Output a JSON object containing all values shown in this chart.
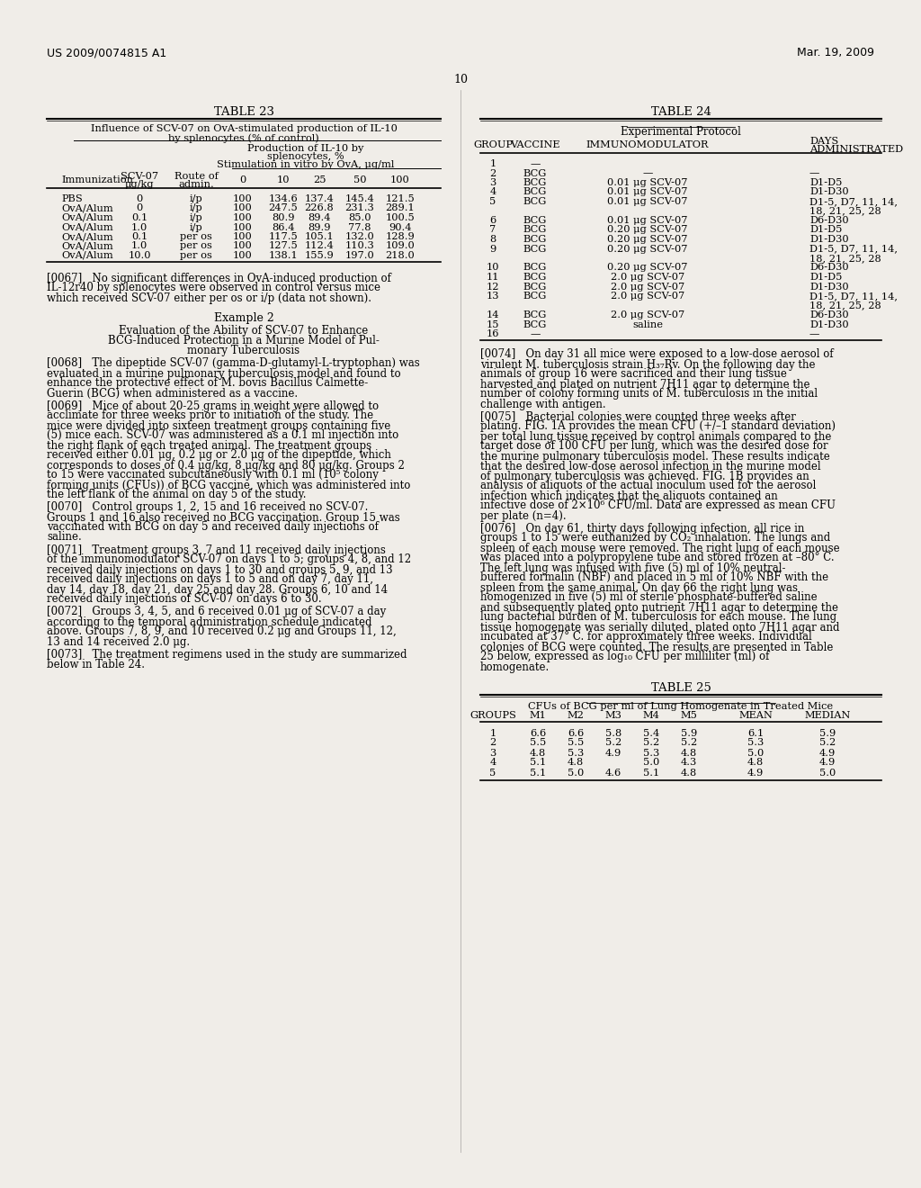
{
  "bg_color": "#f0ede8",
  "header_left": "US 2009/0074815 A1",
  "header_right": "Mar. 19, 2009",
  "page_number": "10",
  "table23_title": "TABLE 23",
  "table23_sub1": "Influence of SCV-07 on OvA-stimulated production of IL-10",
  "table23_sub2": "by splenocytes (% of control)",
  "table23_col_header_right1": "Production of IL-10 by",
  "table23_col_header_right2": "splenocytes, %",
  "table23_col_header_right3": "Stimulation in vitro by OvA, μg/ml",
  "table23_headers": [
    "Immunization",
    "SCV-07\nμg/kg",
    "Route of\nadmin.",
    "0",
    "10",
    "25",
    "50",
    "100"
  ],
  "table23_rows": [
    [
      "PBS",
      "0",
      "i/p",
      "100",
      "134.6",
      "137.4",
      "145.4",
      "121.5"
    ],
    [
      "OvA/Alum",
      "0",
      "i/p",
      "100",
      "247.5",
      "226.8",
      "231.3",
      "289.1"
    ],
    [
      "OvA/Alum",
      "0.1",
      "i/p",
      "100",
      "80.9",
      "89.4",
      "85.0",
      "100.5"
    ],
    [
      "OvA/Alum",
      "1.0",
      "i/p",
      "100",
      "86.4",
      "89.9",
      "77.8",
      "90.4"
    ],
    [
      "OvA/Alum",
      "0.1",
      "per os",
      "100",
      "117.5",
      "105.1",
      "132.0",
      "128.9"
    ],
    [
      "OvA/Alum",
      "1.0",
      "per os",
      "100",
      "127.5",
      "112.4",
      "110.3",
      "109.0"
    ],
    [
      "OvA/Alum",
      "10.0",
      "per os",
      "100",
      "138.1",
      "155.9",
      "197.0",
      "218.0"
    ]
  ],
  "table24_title": "TABLE 24",
  "table24_sub": "Experimental Protocol",
  "table24_headers": [
    "GROUP",
    "VACCINE",
    "IMMUNOMODULATOR",
    "DAYS\nADMINISTRATED"
  ],
  "table24_rows": [
    [
      "1",
      "—",
      "",
      ""
    ],
    [
      "2",
      "BCG",
      "—",
      "—"
    ],
    [
      "3",
      "BCG",
      "0.01 μg SCV-07",
      "D1-D5"
    ],
    [
      "4",
      "BCG",
      "0.01 μg SCV-07",
      "D1-D30"
    ],
    [
      "5",
      "BCG",
      "0.01 μg SCV-07",
      "D1-5, D7, 11, 14,\n18, 21, 25, 28"
    ],
    [
      "6",
      "BCG",
      "0.01 μg SCV-07",
      "D6-D30"
    ],
    [
      "7",
      "BCG",
      "0.20 μg SCV-07",
      "D1-D5"
    ],
    [
      "8",
      "BCG",
      "0.20 μg SCV-07",
      "D1-D30"
    ],
    [
      "9",
      "BCG",
      "0.20 μg SCV-07",
      "D1-5, D7, 11, 14,\n18, 21, 25, 28"
    ],
    [
      "10",
      "BCG",
      "0.20 μg SCV-07",
      "D6-D30"
    ],
    [
      "11",
      "BCG",
      "2.0 μg SCV-07",
      "D1-D5"
    ],
    [
      "12",
      "BCG",
      "2.0 μg SCV-07",
      "D1-D30"
    ],
    [
      "13",
      "BCG",
      "2.0 μg SCV-07",
      "D1-5, D7, 11, 14,\n18, 21, 25, 28"
    ],
    [
      "14",
      "BCG",
      "2.0 μg SCV-07",
      "D6-D30"
    ],
    [
      "15",
      "BCG",
      "saline",
      "D1-D30"
    ],
    [
      "16",
      "—",
      "",
      "—"
    ]
  ],
  "table25_title": "TABLE 25",
  "table25_sub": "CFUs of BCG per ml of Lung Homogenate in Treated Mice",
  "table25_headers": [
    "GROUPS",
    "M1",
    "M2",
    "M3",
    "M4",
    "M5",
    "MEAN",
    "MEDIAN"
  ],
  "table25_rows": [
    [
      "1",
      "6.6",
      "6.6",
      "5.8",
      "5.4",
      "5.9",
      "6.1",
      "5.9"
    ],
    [
      "2",
      "5.5",
      "5.5",
      "5.2",
      "5.2",
      "5.2",
      "5.3",
      "5.2"
    ],
    [
      "3",
      "4.8",
      "5.3",
      "4.9",
      "5.3",
      "4.8",
      "5.0",
      "4.9"
    ],
    [
      "4",
      "5.1",
      "4.8",
      "",
      "5.0",
      "4.3",
      "4.8",
      "4.9"
    ],
    [
      "5",
      "5.1",
      "5.0",
      "4.6",
      "5.1",
      "4.8",
      "4.9",
      "5.0"
    ]
  ],
  "para_0067": "[0067]   No significant differences in OvA-induced production of IL-12r40 by splenocytes were observed in control versus mice which received SCV-07 either per os or i/p (data not shown).",
  "example2_title": "Example 2",
  "example2_line1": "Evaluation of the Ability of SCV-07 to Enhance",
  "example2_line2": "BCG-Induced Protection in a Murine Model of Pul-",
  "example2_line3": "monary Tuberculosis",
  "para_0068_label": "[0068]",
  "para_0068_text": "   The dipeptide SCV-07 (gamma-D-glutamyl-L-tryptophan) was evaluated in a murine pulmonary tuberculosis model and found to enhance the protective effect of M. bovis Bacillus Calmette-Guerin (BCG) when administered as a vaccine.",
  "para_0069_label": "[0069]",
  "para_0069_text": "   Mice of about 20-25 grams in weight were allowed to acclimate for three weeks prior to initiation of the study. The mice were divided into sixteen treatment groups containing five (5) mice each. SCV-07 was administered as a 0.1 ml injection into the right flank of each treated animal. The treatment groups received either 0.01 μg, 0.2 μg or 2.0 μg of the dipeptide, which corresponds to doses of 0.4 μg/kg, 8 μg/kg and 80 μg/kg. Groups 2 to 15 were vaccinated subcutaneously with 0.1 ml (10⁵ colony forming units (CFUs)) of BCG vaccine, which was administered into the left flank of the animal on day 5 of the study.",
  "para_0070_label": "[0070]",
  "para_0070_text": "   Control groups 1, 2, 15 and 16 received no SCV-07. Groups 1 and 16 also received no BCG vaccination. Group 15 was vaccinated with BCG on day 5 and received daily injections of saline.",
  "para_0071_label": "[0071]",
  "para_0071_text": "   Treatment groups 3, 7 and 11 received daily injections of the immunomodulator SCV-07 on days 1 to 5; groups 4, 8, and 12 received daily injections on days 1 to 30 and groups 5, 9, and 13 received daily injections on days 1 to 5 and on day 7, day 11, day 14, day 18, day 21, day 25 and day 28. Groups 6, 10 and 14 received daily injections of SCV-07 on days 6 to 30.",
  "para_0072_label": "[0072]",
  "para_0072_text": "   Groups 3, 4, 5, and 6 received 0.01 μg of SCV-07 a day according to the temporal administration schedule indicated above. Groups 7, 8, 9, and 10 received 0.2 μg and Groups 11, 12, 13 and 14 received 2.0 μg.",
  "para_0073_label": "[0073]",
  "para_0073_text": "   The treatment regimens used in the study are summarized below in Table 24.",
  "para_0074_label": "[0074]",
  "para_0074_text": "   On day 31 all mice were exposed to a low-dose aerosol of virulent M. tuberculosis strain H₃₇Rv. On the following day the animals of group 16 were sacrificed and their lung tissue harvested and plated on nutrient 7H11 agar to determine the number of colony forming units of M. tuberculosis in the initial challenge with antigen.",
  "para_0075_label": "[0075]",
  "para_0075_text": "   Bacterial colonies were counted three weeks after plating. FIG. 1A provides the mean CFU (+/–1 standard deviation) per total lung tissue received by control animals compared to the target dose of 100 CFU per lung, which was the desired dose for the murine pulmonary tuberculosis model. These results indicate that the desired low-dose aerosol infection in the murine model of pulmonary tuberculosis was achieved. FIG. 1B provides an analysis of aliquots of the actual inoculum used for the aerosol infection which indicates that the aliquots contained an infective dose of 2×10⁶ CFU/ml. Data are expressed as mean CFU per plate (n=4).",
  "para_0076_label": "[0076]",
  "para_0076_text": "   On day 61, thirty days following infection, all rice in groups 1 to 15 were euthanized by CO₂ inhalation. The lungs and spleen of each mouse were removed. The right lung of each mouse was placed into a polypropylene tube and stored frozen at –80° C. The left lung was infused with five (5) ml of 10% neutral-buffered formalin (NBF) and placed in 5 ml of 10% NBF with the spleen from the same animal. On day 66 the right lung was homogenized in five (5) ml of sterile phosphate-buffered saline and subsequently plated onto nutrient 7H11 agar to determine the lung bacterial burden of M. tuberculosis for each mouse. The lung tissue homogenate was serially diluted, plated onto 7H11 agar and incubated at 37° C. for approximately three weeks. Individual colonies of BCG were counted. The results are presented in Table 25 below, expressed as log₁₀ CFU per milliliter (ml) of homogenate."
}
